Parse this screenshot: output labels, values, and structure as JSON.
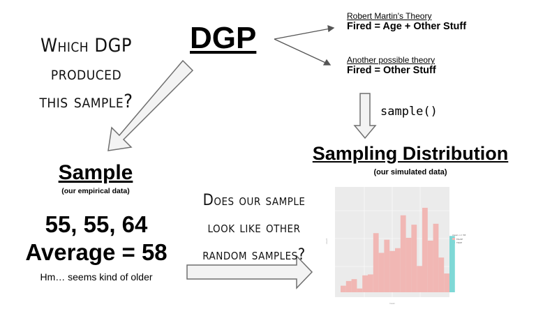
{
  "dgp": {
    "title": "DGP"
  },
  "question_left": {
    "lines": [
      "Which DGP produced",
      "this sample?"
    ]
  },
  "theories": [
    {
      "heading": "Robert Martin's Theory",
      "equation": "Fired = Age + Other Stuff"
    },
    {
      "heading": "Another possible theory",
      "equation": "Fired = Other Stuff"
    }
  ],
  "sample_function": "sample()",
  "sampling_distribution": {
    "title": "Sampling Distribution",
    "subtitle": "(our simulated data)"
  },
  "sample": {
    "title": "Sample",
    "subtitle": "(our empirical data)",
    "values": "55, 55, 64",
    "average": "Average = 58",
    "note": "Hm… seems kind of older"
  },
  "question_right": {
    "lines": [
      "Does our sample",
      "look like other",
      "random samples?"
    ]
  },
  "colors": {
    "bar_false": "#f1b7b4",
    "bar_true": "#7fd8d6",
    "panel": "#ebebeb",
    "arrow_fill": "#f3f3f3",
    "arrow_stroke": "#6f6f6f"
  },
  "chart_data": {
    "type": "bar",
    "title": "",
    "xlabel": "mean",
    "ylabel": "count",
    "legend": {
      "title": "mean >= 58",
      "position": "right",
      "entries": [
        "FALSE",
        "TRUE"
      ]
    },
    "bins": [
      {
        "x": 1,
        "value": 7,
        "group": "FALSE"
      },
      {
        "x": 2,
        "value": 12,
        "group": "FALSE"
      },
      {
        "x": 3,
        "value": 14,
        "group": "FALSE"
      },
      {
        "x": 4,
        "value": 4,
        "group": "FALSE"
      },
      {
        "x": 5,
        "value": 18,
        "group": "FALSE"
      },
      {
        "x": 6,
        "value": 19,
        "group": "FALSE"
      },
      {
        "x": 7,
        "value": 63,
        "group": "FALSE"
      },
      {
        "x": 8,
        "value": 42,
        "group": "FALSE"
      },
      {
        "x": 9,
        "value": 56,
        "group": "FALSE"
      },
      {
        "x": 10,
        "value": 44,
        "group": "FALSE"
      },
      {
        "x": 11,
        "value": 47,
        "group": "FALSE"
      },
      {
        "x": 12,
        "value": 82,
        "group": "FALSE"
      },
      {
        "x": 13,
        "value": 58,
        "group": "FALSE"
      },
      {
        "x": 14,
        "value": 72,
        "group": "FALSE"
      },
      {
        "x": 15,
        "value": 28,
        "group": "FALSE"
      },
      {
        "x": 16,
        "value": 90,
        "group": "FALSE"
      },
      {
        "x": 17,
        "value": 55,
        "group": "FALSE"
      },
      {
        "x": 18,
        "value": 73,
        "group": "FALSE"
      },
      {
        "x": 19,
        "value": 37,
        "group": "FALSE"
      },
      {
        "x": 20,
        "value": 20,
        "group": "FALSE"
      },
      {
        "x": 21,
        "value": 60,
        "group": "TRUE"
      }
    ],
    "ylim": [
      0,
      110
    ]
  }
}
